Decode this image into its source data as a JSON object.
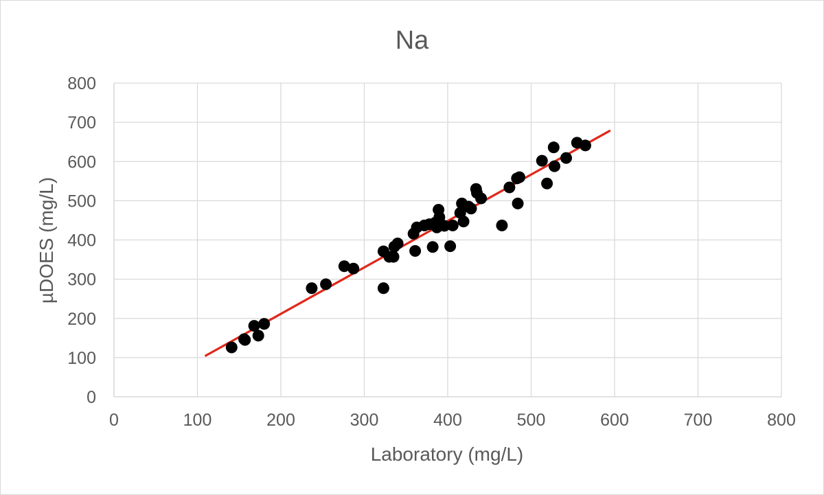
{
  "chart_data": {
    "type": "scatter",
    "title": "Na",
    "xlabel": "Laboratory (mg/L)",
    "ylabel": "µDOES (mg/L)",
    "xlim": [
      0,
      800
    ],
    "ylim": [
      0,
      800
    ],
    "x_ticks": [
      "0",
      "100",
      "200",
      "300",
      "400",
      "500",
      "600",
      "700",
      "800"
    ],
    "y_ticks": [
      "0",
      "100",
      "200",
      "300",
      "400",
      "500",
      "600",
      "700",
      "800"
    ],
    "grid": true,
    "legend": "none",
    "colors": {
      "points": "#000000",
      "trendline": "#e0281b",
      "grid": "#d9d9d9",
      "text": "#595959"
    },
    "series": [
      {
        "points": [
          [
            141,
            126
          ],
          [
            156,
            147
          ],
          [
            157,
            145
          ],
          [
            168,
            181
          ],
          [
            173,
            156
          ],
          [
            180,
            186
          ],
          [
            237,
            277
          ],
          [
            254,
            287
          ],
          [
            276,
            333
          ],
          [
            287,
            327
          ],
          [
            323,
            371
          ],
          [
            323,
            277
          ],
          [
            330,
            357
          ],
          [
            335,
            357
          ],
          [
            336,
            383
          ],
          [
            340,
            391
          ],
          [
            359,
            416
          ],
          [
            361,
            372
          ],
          [
            363,
            432
          ],
          [
            372,
            437
          ],
          [
            378,
            440
          ],
          [
            382,
            382
          ],
          [
            385,
            444
          ],
          [
            387,
            432
          ],
          [
            389,
            477
          ],
          [
            390,
            458
          ],
          [
            396,
            436
          ],
          [
            403,
            384
          ],
          [
            406,
            437
          ],
          [
            415,
            469
          ],
          [
            417,
            493
          ],
          [
            419,
            447
          ],
          [
            425,
            485
          ],
          [
            428,
            480
          ],
          [
            434,
            530
          ],
          [
            435,
            520
          ],
          [
            440,
            506
          ],
          [
            465,
            437
          ],
          [
            474,
            534
          ],
          [
            483,
            557
          ],
          [
            484,
            493
          ],
          [
            486,
            560
          ],
          [
            513,
            602
          ],
          [
            519,
            544
          ],
          [
            527,
            636
          ],
          [
            528,
            588
          ],
          [
            542,
            609
          ],
          [
            555,
            648
          ],
          [
            565,
            641
          ]
        ]
      }
    ],
    "trendline": {
      "x": [
        110,
        594
      ],
      "y": [
        105,
        678
      ]
    }
  }
}
